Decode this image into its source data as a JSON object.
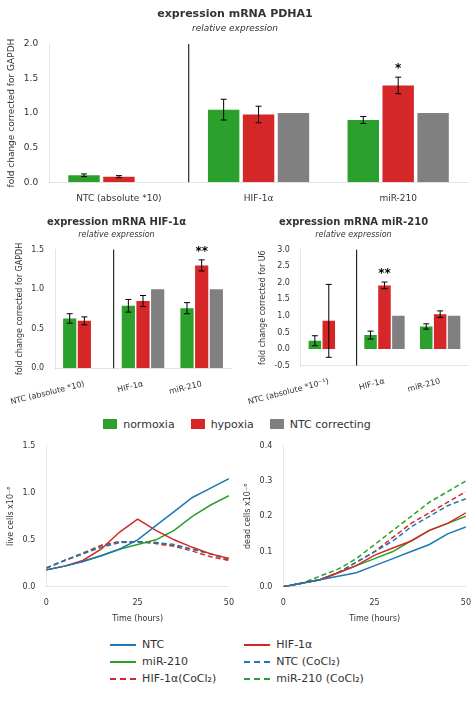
{
  "chart_data": [
    {
      "type": "bar",
      "title": "expression mRNA PDHA1",
      "subtitle": "relative expression",
      "categories": [
        "NTC (absolute *10)",
        "HIF-1α",
        "miR-210"
      ],
      "series": [
        {
          "name": "normoxia",
          "color": "#2ca02c",
          "values": [
            0.1,
            1.05,
            0.9
          ],
          "errors": [
            0.02,
            0.15,
            0.05
          ]
        },
        {
          "name": "hypoxia",
          "color": "#d62728",
          "values": [
            0.08,
            0.98,
            1.4
          ],
          "errors": [
            0.015,
            0.12,
            0.12
          ]
        },
        {
          "name": "NTC correcting",
          "color": "#808080",
          "values": [
            0.0,
            1.0,
            1.0
          ]
        }
      ],
      "ylabel": "fold change corrected for GAPDH",
      "ylim": [
        0.0,
        2.0
      ],
      "yticks": [
        {
          "value": 0.0,
          "label": "0.0"
        },
        0.5,
        {
          "value": 1.0,
          "label": "1.0"
        },
        1.5,
        {
          "value": 2.0,
          "label": "2.0"
        }
      ],
      "grid": false,
      "annotations": [
        {
          "text": "*",
          "category": "miR-210",
          "series": "hypoxia"
        }
      ]
    },
    {
      "type": "bar",
      "title": "expression mRNA HIF-1α",
      "subtitle": "relative expression",
      "categories": [
        "NTC (absolute *10)",
        "HIF-1α",
        "miR-210"
      ],
      "series": [
        {
          "name": "normoxia",
          "color": "#2ca02c",
          "values": [
            0.63,
            0.79,
            0.76
          ],
          "errors": [
            0.06,
            0.08,
            0.07
          ]
        },
        {
          "name": "hypoxia",
          "color": "#d62728",
          "values": [
            0.6,
            0.85,
            1.3
          ],
          "errors": [
            0.05,
            0.07,
            0.07
          ]
        },
        {
          "name": "NTC correcting",
          "color": "#808080",
          "values": [
            0.0,
            1.0,
            1.0
          ]
        }
      ],
      "ylabel": "fold change corrected for GAPDH",
      "ylim": [
        0.0,
        1.5
      ],
      "yticks": [
        {
          "value": 0.0,
          "label": "0.0"
        },
        0.5,
        {
          "value": 1.0,
          "label": "1.0"
        },
        1.5
      ],
      "grid": false,
      "legend": "bottom",
      "annotations": [
        {
          "text": "**",
          "category": "miR-210",
          "series": "hypoxia"
        }
      ]
    },
    {
      "type": "bar",
      "title": "expression mRNA miR-210",
      "subtitle": "relative expression",
      "categories": [
        "NTC (absolute *10⁻¹)",
        "HIF-1α",
        "miR-210"
      ],
      "series": [
        {
          "name": "normoxia",
          "color": "#2ca02c",
          "values": [
            0.25,
            0.42,
            0.68
          ],
          "errors": [
            0.15,
            0.12,
            0.08
          ]
        },
        {
          "name": "hypoxia",
          "color": "#d62728",
          "values": [
            0.85,
            1.92,
            1.05
          ],
          "errors": [
            1.1,
            0.1,
            0.1
          ]
        },
        {
          "name": "NTC correcting",
          "color": "#808080",
          "values": [
            0.0,
            1.0,
            1.0
          ]
        }
      ],
      "ylabel": "fold change corrected for U6",
      "ylim": [
        -0.5,
        3.0
      ],
      "yticks": [
        -0.5,
        {
          "value": 0.0,
          "label": "0.0"
        },
        0.5,
        {
          "value": 1.0,
          "label": "1.0"
        },
        1.5,
        {
          "value": 2.0,
          "label": "2.0"
        },
        2.5,
        {
          "value": 3.0,
          "label": "3.0"
        }
      ],
      "grid": false,
      "annotations": [
        {
          "text": "**",
          "category": "HIF-1α",
          "series": "hypoxia"
        }
      ]
    },
    {
      "type": "line",
      "x": [
        0,
        5,
        10,
        15,
        20,
        25,
        30,
        35,
        40,
        45,
        50
      ],
      "series": [
        {
          "name": "NTC",
          "color": "#1f77b4",
          "line_style": "solid",
          "values": [
            0.18,
            0.22,
            0.27,
            0.33,
            0.4,
            0.5,
            0.65,
            0.8,
            0.95,
            1.05,
            1.15
          ]
        },
        {
          "name": "HIF-1α",
          "color": "#d62728",
          "line_style": "solid",
          "values": [
            0.18,
            0.22,
            0.28,
            0.4,
            0.58,
            0.72,
            0.6,
            0.5,
            0.42,
            0.35,
            0.3
          ]
        },
        {
          "name": "miR-210",
          "color": "#2ca02c",
          "line_style": "solid",
          "values": [
            0.18,
            0.22,
            0.27,
            0.33,
            0.4,
            0.45,
            0.5,
            0.6,
            0.75,
            0.87,
            0.97
          ]
        },
        {
          "name": "NTC (CoCl₂)",
          "color": "#1f77b4",
          "line_style": "dashed",
          "values": [
            0.2,
            0.28,
            0.35,
            0.42,
            0.47,
            0.48,
            0.47,
            0.45,
            0.4,
            0.35,
            0.3
          ]
        },
        {
          "name": "HIF-1α(CoCl₂)",
          "color": "#d62728",
          "line_style": "dashed",
          "values": [
            0.2,
            0.28,
            0.35,
            0.44,
            0.48,
            0.48,
            0.46,
            0.43,
            0.38,
            0.32,
            0.28
          ]
        },
        {
          "name": "miR-210 (CoCl₂)",
          "color": "#2ca02c",
          "line_style": "dashed",
          "values": [
            0.2,
            0.28,
            0.36,
            0.44,
            0.48,
            0.48,
            0.47,
            0.44,
            0.4,
            0.35,
            0.28
          ]
        }
      ],
      "xlabel": "Time (hours)",
      "ylabel": "live cells x10⁻⁶",
      "xlim": [
        0,
        50
      ],
      "xticks": [
        0,
        25,
        50
      ],
      "ylim": [
        0.0,
        1.5
      ],
      "yticks": [
        {
          "value": 0.0,
          "label": "0.0"
        },
        0.5,
        {
          "value": 1.0,
          "label": "1.0"
        },
        1.5
      ],
      "grid": false,
      "legend": "bottom"
    },
    {
      "type": "line",
      "x": [
        0,
        5,
        10,
        15,
        20,
        25,
        30,
        35,
        40,
        45,
        50
      ],
      "series": [
        {
          "name": "NTC",
          "color": "#1f77b4",
          "line_style": "solid",
          "values": [
            0.0,
            0.01,
            0.02,
            0.03,
            0.04,
            0.06,
            0.08,
            0.1,
            0.12,
            0.15,
            0.17
          ]
        },
        {
          "name": "HIF-1α",
          "color": "#d62728",
          "line_style": "solid",
          "values": [
            0.0,
            0.01,
            0.02,
            0.04,
            0.06,
            0.09,
            0.11,
            0.13,
            0.16,
            0.18,
            0.21
          ]
        },
        {
          "name": "miR-210",
          "color": "#2ca02c",
          "line_style": "solid",
          "values": [
            0.0,
            0.01,
            0.02,
            0.04,
            0.06,
            0.08,
            0.1,
            0.13,
            0.16,
            0.18,
            0.2
          ]
        },
        {
          "name": "NTC (CoCl₂)",
          "color": "#1f77b4",
          "line_style": "dashed",
          "values": [
            0.0,
            0.01,
            0.02,
            0.04,
            0.07,
            0.1,
            0.13,
            0.17,
            0.2,
            0.23,
            0.25
          ]
        },
        {
          "name": "HIF-1α(CoCl₂)",
          "color": "#d62728",
          "line_style": "dashed",
          "values": [
            0.0,
            0.01,
            0.02,
            0.04,
            0.07,
            0.1,
            0.14,
            0.18,
            0.21,
            0.24,
            0.27
          ]
        },
        {
          "name": "miR-210 (CoCl₂)",
          "color": "#2ca02c",
          "line_style": "dashed",
          "values": [
            0.0,
            0.01,
            0.03,
            0.05,
            0.08,
            0.12,
            0.16,
            0.2,
            0.24,
            0.27,
            0.3
          ]
        }
      ],
      "xlabel": "Time (hours)",
      "ylabel": "dead cells x10⁻⁶",
      "xlim": [
        0,
        50
      ],
      "xticks": [
        0,
        25,
        50
      ],
      "ylim": [
        0.0,
        0.4
      ],
      "yticks": [
        {
          "value": 0.0,
          "label": "0.0"
        },
        0.1,
        0.2,
        0.3,
        0.4
      ],
      "grid": false
    }
  ]
}
